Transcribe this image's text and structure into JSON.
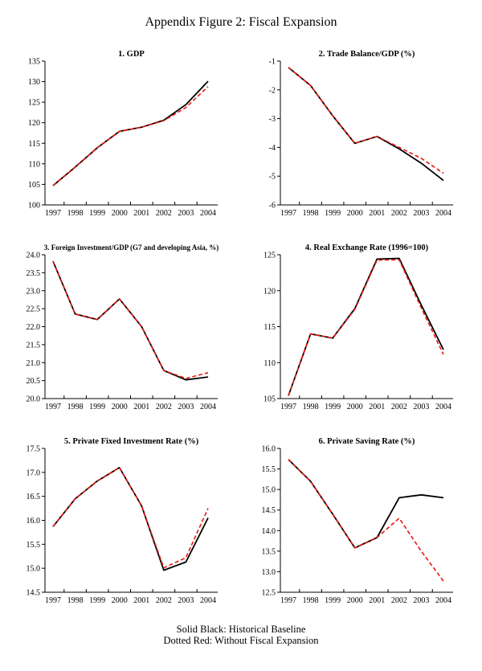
{
  "page": {
    "title": "Appendix Figure 2: Fiscal Expansion",
    "footer_line1": "Solid Black: Historical Baseline",
    "footer_line2": "Dotted Red: Without Fiscal Expansion"
  },
  "colors": {
    "baseline": "#000000",
    "counterfactual": "#e8190f"
  },
  "legend": {
    "baseline_label": "Historical Baseline",
    "counterfactual_label": "Without Fiscal Expansion"
  },
  "chart_data": [
    {
      "type": "line",
      "title": "1. GDP",
      "x": [
        1997,
        1998,
        1999,
        2000,
        2001,
        2002,
        2003,
        2004
      ],
      "ylim": [
        100,
        135
      ],
      "ytick_step": 5,
      "y_decimals": 0,
      "grid": false,
      "legend_position": "none",
      "series": [
        {
          "name": "Historical Baseline",
          "color": "#000000",
          "dash": "solid",
          "values": [
            104.7,
            109.2,
            113.9,
            117.9,
            118.9,
            120.6,
            124.4,
            130.1
          ]
        },
        {
          "name": "Without Fiscal Expansion",
          "color": "#e8190f",
          "dash": "dashed",
          "values": [
            104.7,
            109.2,
            113.9,
            117.9,
            118.9,
            120.5,
            123.7,
            128.8
          ]
        }
      ]
    },
    {
      "type": "line",
      "title": "2. Trade Balance/GDP (%)",
      "x": [
        1997,
        1998,
        1999,
        2000,
        2001,
        2002,
        2003,
        2004
      ],
      "ylim": [
        -6,
        -1
      ],
      "ytick_step": 1,
      "y_decimals": 0,
      "grid": false,
      "legend_position": "none",
      "series": [
        {
          "name": "Historical Baseline",
          "color": "#000000",
          "dash": "solid",
          "values": [
            -1.22,
            -1.85,
            -2.9,
            -3.86,
            -3.62,
            -4.05,
            -4.55,
            -5.15
          ]
        },
        {
          "name": "Without Fiscal Expansion",
          "color": "#e8190f",
          "dash": "dashed",
          "values": [
            -1.22,
            -1.85,
            -2.9,
            -3.86,
            -3.62,
            -4.0,
            -4.38,
            -4.9
          ]
        }
      ]
    },
    {
      "type": "line",
      "title": "3. Foreign Investment/GDP (G7 and developing Asia, %)",
      "x": [
        1997,
        1998,
        1999,
        2000,
        2001,
        2002,
        2003,
        2004
      ],
      "ylim": [
        20.0,
        24.0
      ],
      "ytick_step": 0.5,
      "y_decimals": 1,
      "grid": false,
      "legend_position": "none",
      "series": [
        {
          "name": "Historical Baseline",
          "color": "#000000",
          "dash": "solid",
          "values": [
            23.82,
            22.35,
            22.2,
            22.77,
            22.0,
            20.78,
            20.52,
            20.6
          ]
        },
        {
          "name": "Without Fiscal Expansion",
          "color": "#e8190f",
          "dash": "dashed",
          "values": [
            23.82,
            22.35,
            22.2,
            22.77,
            22.0,
            20.78,
            20.56,
            20.72
          ]
        }
      ]
    },
    {
      "type": "line",
      "title": "4. Real Exchange Rate (1996=100)",
      "x": [
        1997,
        1998,
        1999,
        2000,
        2001,
        2002,
        2003,
        2004
      ],
      "ylim": [
        105,
        125
      ],
      "ytick_step": 5,
      "y_decimals": 0,
      "grid": false,
      "legend_position": "none",
      "series": [
        {
          "name": "Historical Baseline",
          "color": "#000000",
          "dash": "solid",
          "values": [
            105.4,
            114.0,
            113.4,
            117.5,
            124.4,
            124.5,
            118.0,
            111.8
          ]
        },
        {
          "name": "Without Fiscal Expansion",
          "color": "#e8190f",
          "dash": "dashed",
          "values": [
            105.4,
            114.0,
            113.4,
            117.4,
            124.25,
            124.3,
            117.6,
            111.15
          ]
        }
      ]
    },
    {
      "type": "line",
      "title": "5. Private Fixed Investment Rate (%)",
      "x": [
        1997,
        1998,
        1999,
        2000,
        2001,
        2002,
        2003,
        2004
      ],
      "ylim": [
        14.5,
        17.5
      ],
      "ytick_step": 0.5,
      "y_decimals": 1,
      "grid": false,
      "legend_position": "none",
      "series": [
        {
          "name": "Historical Baseline",
          "color": "#000000",
          "dash": "solid",
          "values": [
            15.87,
            16.45,
            16.82,
            17.1,
            16.3,
            14.96,
            15.13,
            16.05
          ]
        },
        {
          "name": "Without Fiscal Expansion",
          "color": "#e8190f",
          "dash": "dashed",
          "values": [
            15.87,
            16.45,
            16.82,
            17.1,
            16.3,
            15.01,
            15.22,
            16.25
          ]
        }
      ]
    },
    {
      "type": "line",
      "title": "6. Private Saving Rate (%)",
      "x": [
        1997,
        1998,
        1999,
        2000,
        2001,
        2002,
        2003,
        2004
      ],
      "ylim": [
        12.5,
        16.0
      ],
      "ytick_step": 0.5,
      "y_decimals": 1,
      "grid": false,
      "legend_position": "none",
      "series": [
        {
          "name": "Historical Baseline",
          "color": "#000000",
          "dash": "solid",
          "values": [
            15.73,
            15.2,
            14.4,
            13.58,
            13.83,
            14.8,
            14.87,
            14.8
          ]
        },
        {
          "name": "Without Fiscal Expansion",
          "color": "#e8190f",
          "dash": "dashed",
          "values": [
            15.73,
            15.2,
            14.4,
            13.58,
            13.83,
            14.3,
            13.5,
            12.77
          ]
        }
      ]
    }
  ]
}
